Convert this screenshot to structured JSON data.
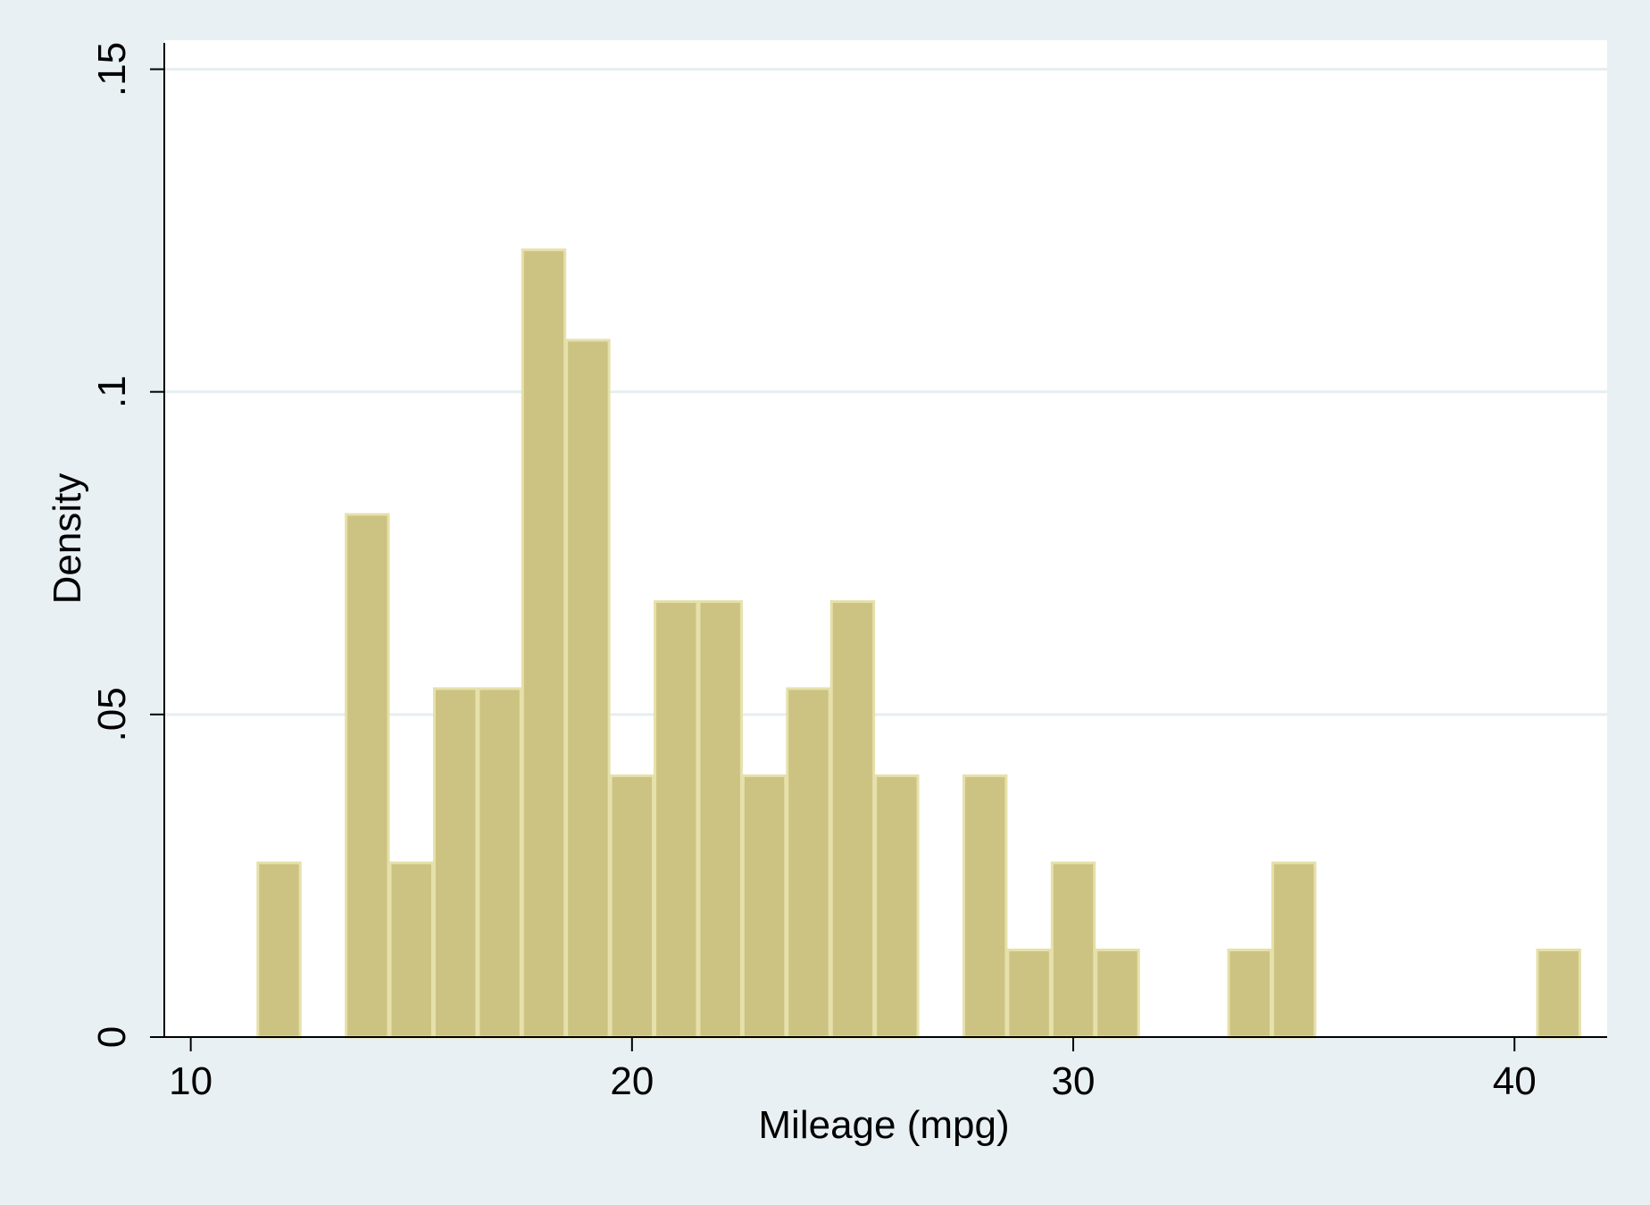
{
  "chart_data": {
    "type": "bar",
    "title": "",
    "xlabel": "Mileage (mpg)",
    "ylabel": "Density",
    "xlim": [
      9.4,
      42.1
    ],
    "ylim": [
      0,
      0.1545
    ],
    "x_ticks": [
      {
        "value": 10,
        "label": "10"
      },
      {
        "value": 20,
        "label": "20"
      },
      {
        "value": 30,
        "label": "30"
      },
      {
        "value": 40,
        "label": "40"
      }
    ],
    "y_ticks": [
      {
        "value": 0,
        "label": "0"
      },
      {
        "value": 0.05,
        "label": ".05"
      },
      {
        "value": 0.1,
        "label": ".1"
      },
      {
        "value": 0.15,
        "label": ".15"
      }
    ],
    "grid": "horizontal",
    "bins": [
      {
        "x0": 11.5,
        "x1": 12.5,
        "density": 0.027
      },
      {
        "x0": 13.5,
        "x1": 14.5,
        "density": 0.081
      },
      {
        "x0": 14.5,
        "x1": 15.5,
        "density": 0.027
      },
      {
        "x0": 15.5,
        "x1": 16.5,
        "density": 0.054
      },
      {
        "x0": 16.5,
        "x1": 17.5,
        "density": 0.054
      },
      {
        "x0": 17.5,
        "x1": 18.5,
        "density": 0.122
      },
      {
        "x0": 18.5,
        "x1": 19.5,
        "density": 0.108
      },
      {
        "x0": 19.5,
        "x1": 20.5,
        "density": 0.0405
      },
      {
        "x0": 20.5,
        "x1": 21.5,
        "density": 0.0675
      },
      {
        "x0": 21.5,
        "x1": 22.5,
        "density": 0.0675
      },
      {
        "x0": 22.5,
        "x1": 23.5,
        "density": 0.0405
      },
      {
        "x0": 23.5,
        "x1": 24.5,
        "density": 0.054
      },
      {
        "x0": 24.5,
        "x1": 25.5,
        "density": 0.0675
      },
      {
        "x0": 25.5,
        "x1": 26.5,
        "density": 0.0405
      },
      {
        "x0": 27.5,
        "x1": 28.5,
        "density": 0.0405
      },
      {
        "x0": 28.5,
        "x1": 29.5,
        "density": 0.0135
      },
      {
        "x0": 29.5,
        "x1": 30.5,
        "density": 0.027
      },
      {
        "x0": 30.5,
        "x1": 31.5,
        "density": 0.0135
      },
      {
        "x0": 33.5,
        "x1": 34.5,
        "density": 0.0135
      },
      {
        "x0": 34.5,
        "x1": 35.5,
        "density": 0.027
      },
      {
        "x0": 40.5,
        "x1": 41.5,
        "density": 0.0135
      }
    ],
    "colors": {
      "outer_background": "#e9f0f3",
      "plot_background": "#ffffff",
      "bar_fill": "#ccc383",
      "bar_outline": "#e6e0aa",
      "grid": "#e6eef1",
      "axis": "#000000"
    }
  }
}
